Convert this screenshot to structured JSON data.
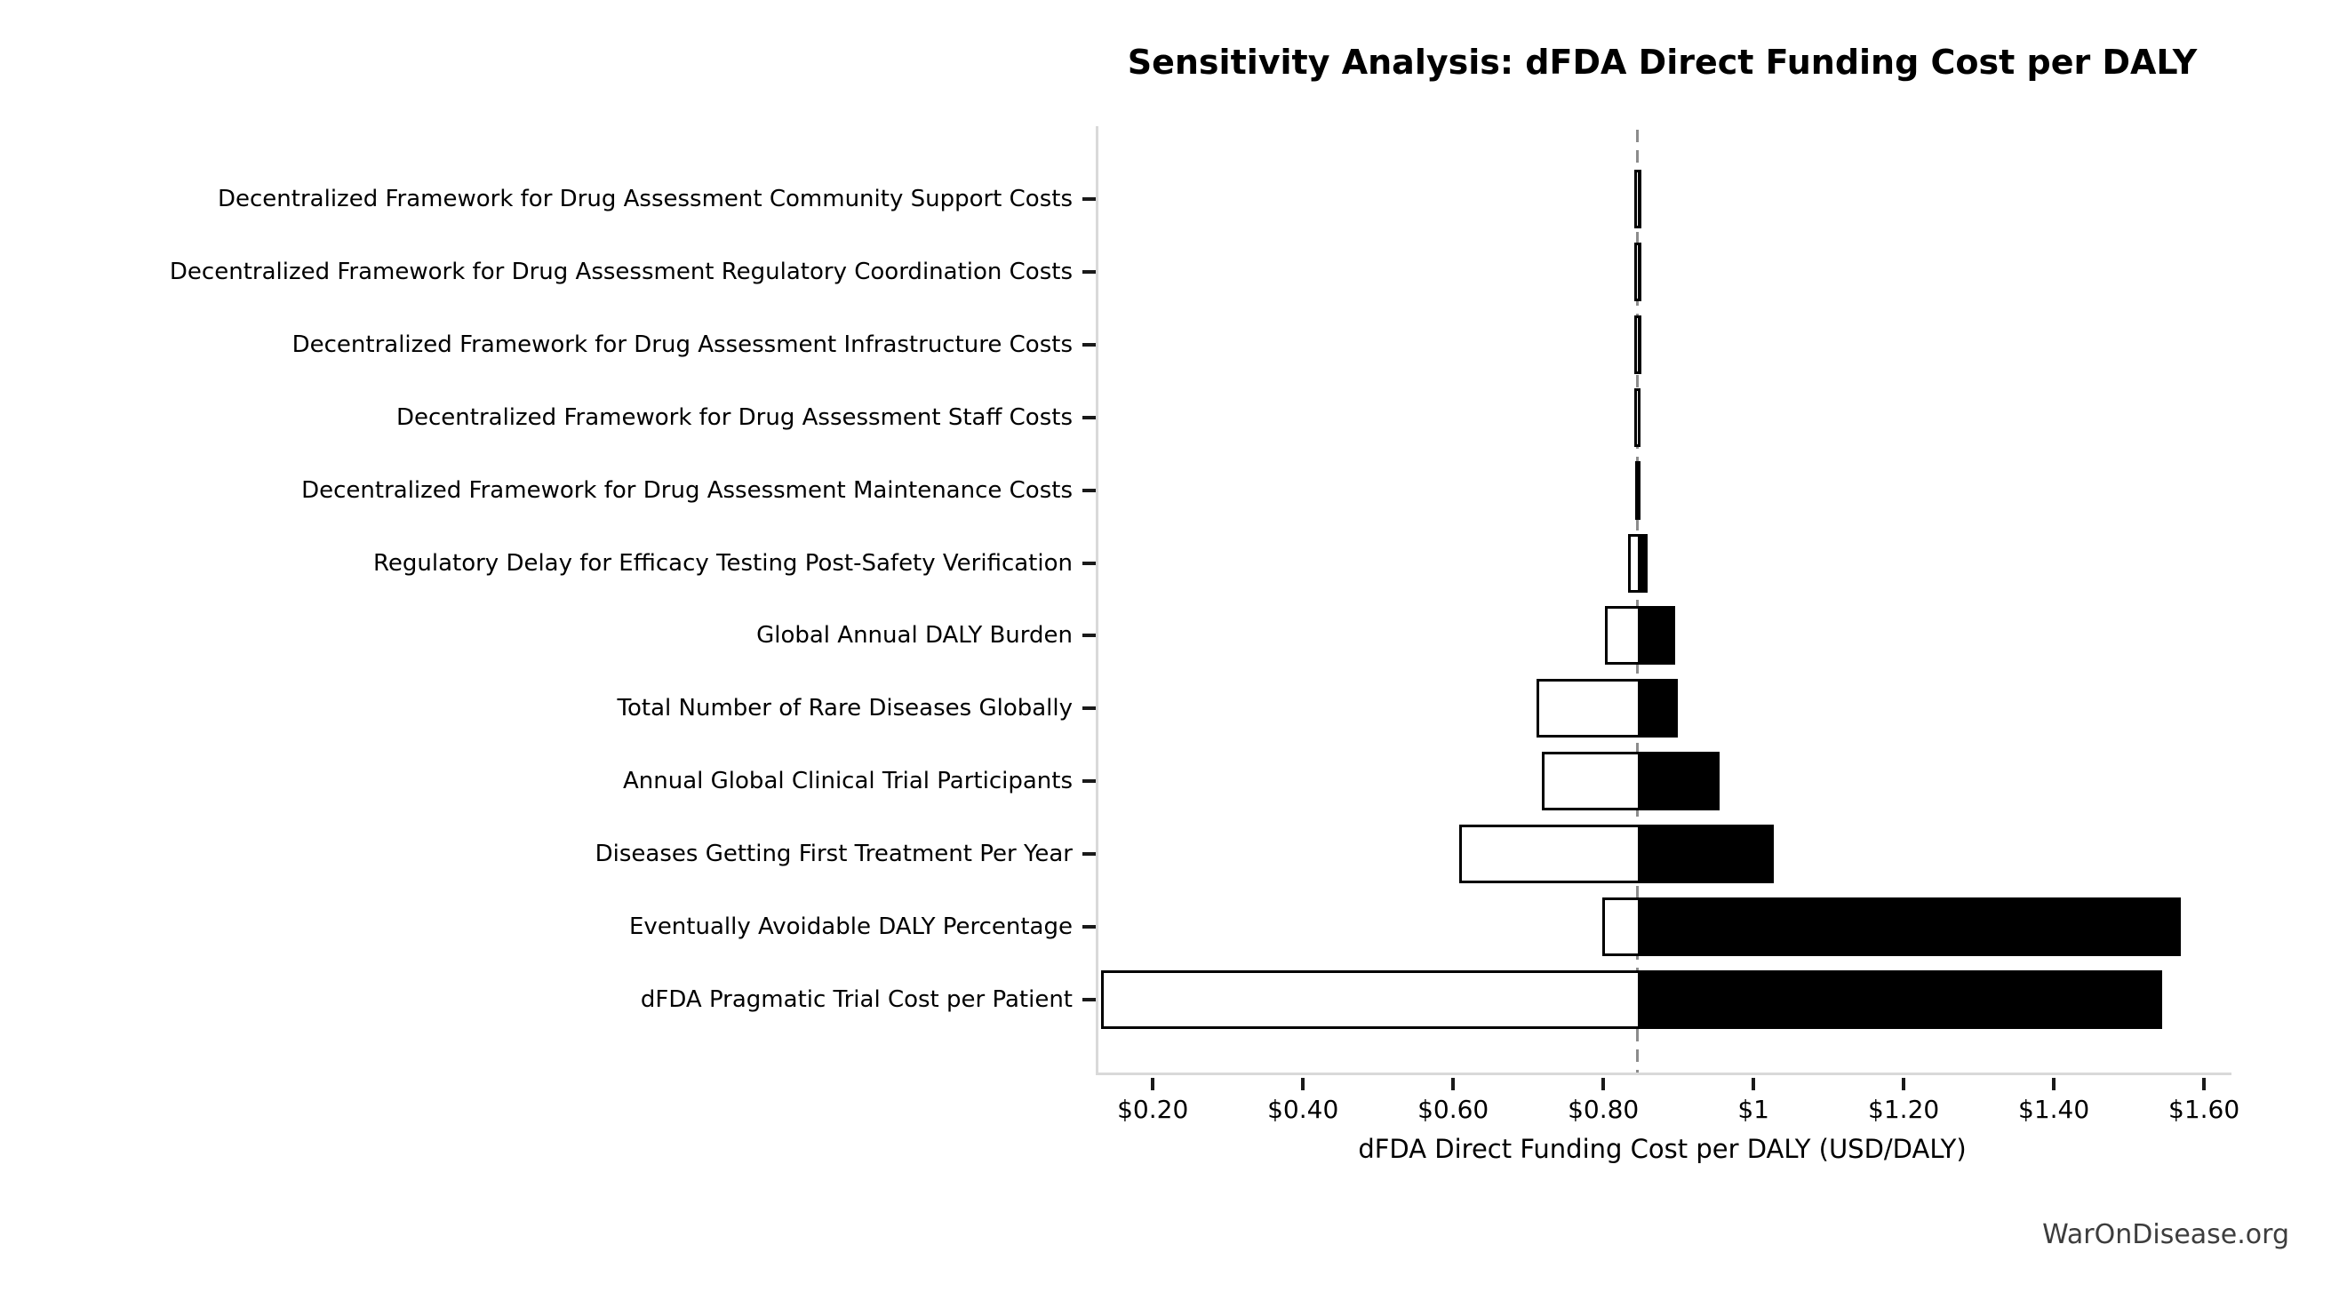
{
  "title": "Sensitivity Analysis: dFDA Direct Funding Cost per DALY",
  "footer": "WarOnDisease.org",
  "colors": {
    "bar_fill_low": "#ffffff",
    "bar_fill_high": "#000000",
    "bar_edge": "#000000",
    "baseline_line": "#8c8c8c",
    "spine": "#d9d9d9",
    "tick_mark": "#1a1a1a",
    "footer_text": "#3d3d3d"
  },
  "chart_data": {
    "type": "bar",
    "subtype": "tornado-sensitivity",
    "orientation": "horizontal",
    "title": "Sensitivity Analysis: dFDA Direct Funding Cost per DALY",
    "xlabel": "dFDA Direct Funding Cost per DALY (USD/DALY)",
    "ylabel": "",
    "baseline": 0.842,
    "xlim": [
      0.124,
      1.633
    ],
    "grid": false,
    "legend": false,
    "x_ticks": [
      {
        "value": 0.2,
        "label": "$0.20"
      },
      {
        "value": 0.4,
        "label": "$0.40"
      },
      {
        "value": 0.6,
        "label": "$0.60"
      },
      {
        "value": 0.8,
        "label": "$0.80"
      },
      {
        "value": 1.0,
        "label": "$1"
      },
      {
        "value": 1.2,
        "label": "$1.20"
      },
      {
        "value": 1.4,
        "label": "$1.40"
      },
      {
        "value": 1.6,
        "label": "$1.60"
      }
    ],
    "categories": [
      "Decentralized Framework for Drug Assessment Community Support Costs",
      "Decentralized Framework for Drug Assessment Regulatory Coordination Costs",
      "Decentralized Framework for Drug Assessment Infrastructure Costs",
      "Decentralized Framework for Drug Assessment Staff Costs",
      "Decentralized Framework for Drug Assessment Maintenance Costs",
      "Regulatory Delay for Efficacy Testing Post-Safety Verification",
      "Global Annual DALY Burden",
      "Total Number of Rare Diseases Globally",
      "Annual Global Clinical Trial Participants",
      "Diseases Getting First Treatment Per Year",
      "Eventually Avoidable DALY Percentage",
      "dFDA Pragmatic Trial Cost per Patient"
    ],
    "series": [
      {
        "name": "low (white)",
        "values": [
          0.8375,
          0.8375,
          0.838,
          0.8382,
          0.8386,
          0.829,
          0.799,
          0.708,
          0.715,
          0.604,
          0.795,
          0.127
        ]
      },
      {
        "name": "high (black)",
        "values": [
          0.8475,
          0.8473,
          0.847,
          0.8465,
          0.846,
          0.855,
          0.892,
          0.896,
          0.951,
          1.024,
          1.566,
          1.541
        ]
      }
    ]
  }
}
